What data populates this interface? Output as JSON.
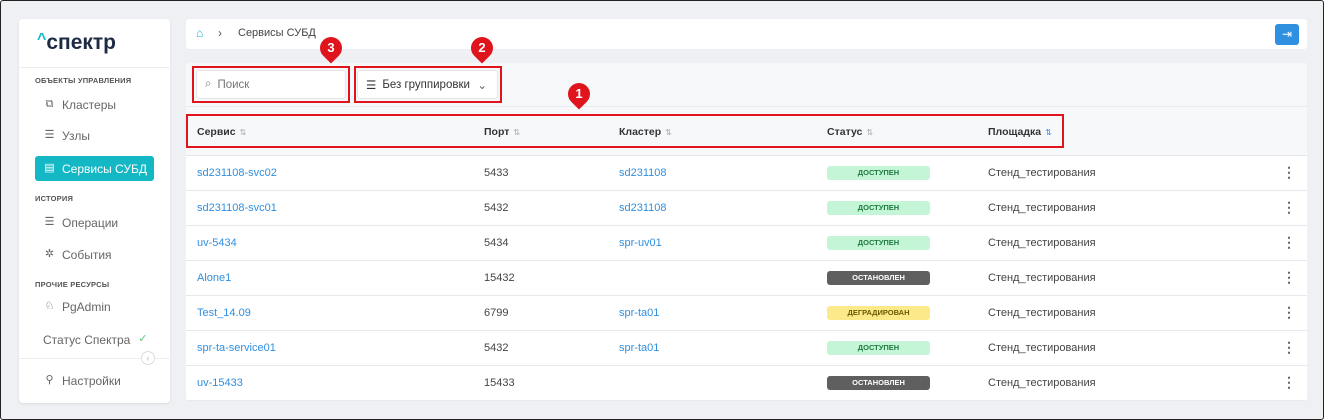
{
  "sidebar": {
    "logo": "спектр",
    "sections": [
      {
        "title": "ОБЪЕКТЫ УПРАВЛЕНИЯ",
        "items": [
          {
            "label": "Кластеры",
            "icon": "cluster-icon"
          },
          {
            "label": "Узлы",
            "icon": "server-icon"
          },
          {
            "label": "Сервисы СУБД",
            "icon": "database-service-icon",
            "active": true
          }
        ]
      },
      {
        "title": "ИСТОРИЯ",
        "items": [
          {
            "label": "Операции",
            "icon": "operations-icon"
          },
          {
            "label": "События",
            "icon": "events-icon"
          }
        ]
      },
      {
        "title": "ПРОЧИЕ РЕСУРСЫ",
        "items": [
          {
            "label": "PgAdmin",
            "icon": "pgadmin-icon"
          },
          {
            "label": "Статус Спектра",
            "icon": "check-icon"
          }
        ]
      }
    ],
    "settings": "Настройки"
  },
  "breadcrumb": {
    "current": "Сервисы СУБД"
  },
  "toolbar": {
    "search_placeholder": "Поиск",
    "grouping": "Без группировки"
  },
  "markers": [
    "1",
    "2",
    "3"
  ],
  "table": {
    "headers": [
      "Сервис",
      "Порт",
      "Кластер",
      "Статус",
      "Площадка"
    ],
    "rows": [
      {
        "service": "sd231108-svc02",
        "port": "5433",
        "cluster": "sd231108",
        "status": "ДОСТУПЕН",
        "site": "Стенд_тестирования"
      },
      {
        "service": "sd231108-svc01",
        "port": "5432",
        "cluster": "sd231108",
        "status": "ДОСТУПЕН",
        "site": "Стенд_тестирования"
      },
      {
        "service": "uv-5434",
        "port": "5434",
        "cluster": "spr-uv01",
        "status": "ДОСТУПЕН",
        "site": "Стенд_тестирования"
      },
      {
        "service": "Alone1",
        "port": "15432",
        "cluster": "",
        "status": "ОСТАНОВЛЕН",
        "site": "Стенд_тестирования"
      },
      {
        "service": "Test_14.09",
        "port": "6799",
        "cluster": "spr-ta01",
        "status": "ДЕГРАДИРОВАН",
        "site": "Стенд_тестирования"
      },
      {
        "service": "spr-ta-service01",
        "port": "5432",
        "cluster": "spr-ta01",
        "status": "ДОСТУПЕН",
        "site": "Стенд_тестирования"
      },
      {
        "service": "uv-15433",
        "port": "15433",
        "cluster": "",
        "status": "ОСТАНОВЛЕН",
        "site": "Стенд_тестирования"
      }
    ]
  },
  "colors": {
    "accent": "#14b8c4",
    "link": "#2f8fe0",
    "annotation": "#e0141c",
    "available_bg": "#c3f5d6",
    "stopped_bg": "#5f5f5f",
    "degraded_bg": "#fbe98a"
  }
}
